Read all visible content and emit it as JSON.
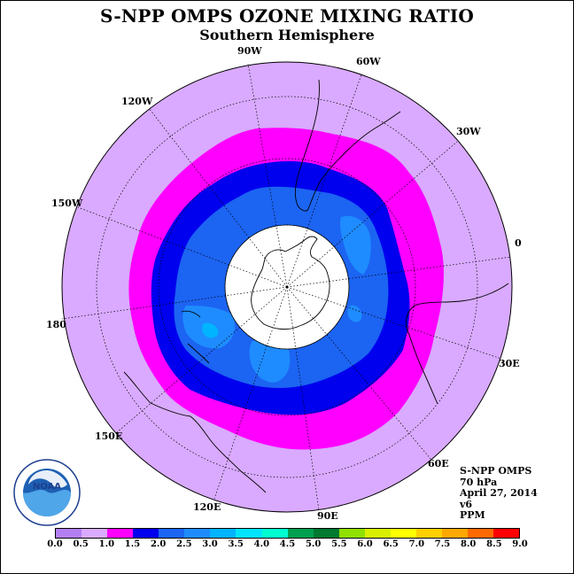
{
  "title": "S-NPP OMPS OZONE MIXING RATIO",
  "subtitle": "Southern Hemisphere",
  "longitude_labels": [
    "90W",
    "60W",
    "30W",
    "0",
    "30E",
    "60E",
    "90E",
    "120E",
    "150E",
    "180",
    "150W",
    "120W"
  ],
  "info": {
    "instrument": "S-NPP OMPS",
    "level": "70 hPa",
    "date": "April 27, 2014",
    "version": "v6",
    "units": "PPM"
  },
  "logo": {
    "text": "NOAA",
    "ring_text": "NATIONAL OCEANIC AND ATMOSPHERIC ADMINISTRATION · U.S. DEPARTMENT OF COMMERCE"
  },
  "colorbar": {
    "tick_labels": [
      "0.0",
      "0.5",
      "1.0",
      "1.5",
      "2.0",
      "2.5",
      "3.0",
      "3.5",
      "4.0",
      "4.5",
      "5.0",
      "5.5",
      "6.0",
      "6.5",
      "7.0",
      "7.5",
      "8.0",
      "8.5",
      "9.0"
    ],
    "colors": [
      "#b27ff2",
      "#d9aaff",
      "#ff00ff",
      "#0000ee",
      "#1c64f2",
      "#1e8cff",
      "#00b4ff",
      "#00e4ff",
      "#00ffd0",
      "#00a050",
      "#007a30",
      "#90e000",
      "#d8f000",
      "#ffff00",
      "#ffd000",
      "#ffa800",
      "#ff6a00",
      "#ff0000",
      "#8b5a3c"
    ]
  },
  "map": {
    "projection": "polar stereographic",
    "hemisphere": "south",
    "palette": {
      "band_0_5_1_0": "#d9aaff",
      "band_1_0_1_5": "#ff00ff",
      "band_1_5_2_0": "#0000ee",
      "band_2_0_2_5": "#1c64f2",
      "band_2_5_3_0": "#1e8cff",
      "band_3_0_3_5": "#00b4ff",
      "missing_data": "#ffffff"
    }
  }
}
